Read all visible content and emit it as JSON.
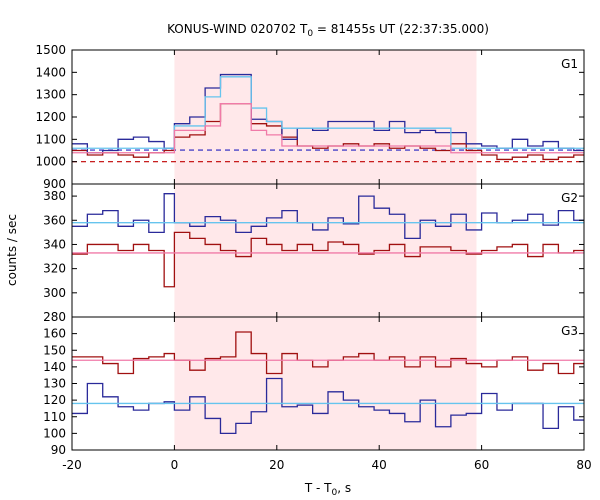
{
  "chart_data": {
    "type": "line",
    "title": {
      "prefix": "KONUS-WIND 020702 T",
      "sub": "0",
      "suffix": " = 81455s UT (22:37:35.000)"
    },
    "xlabel": {
      "prefix": "T - T",
      "sub": "0",
      "suffix": ", s"
    },
    "ylabel": "counts / sec",
    "xlim": [
      -20,
      80
    ],
    "x_ticks": [
      -20,
      0,
      20,
      40,
      60,
      80
    ],
    "x_tick_labels": [
      "-20",
      "0",
      "20",
      "40",
      "60",
      "80"
    ],
    "highlight_interval": [
      0,
      59
    ],
    "highlight_color": "#ffe8ea",
    "colors": {
      "red_series": "#a01010",
      "blue_series": "#2a2a9a",
      "light_blue": "#66c4ee",
      "pink": "#f07aa8",
      "red_dashed": "#c00000",
      "blue_dashed": "#2020c0"
    },
    "panels": [
      {
        "label": "G1",
        "ylim": [
          900,
          1500
        ],
        "y_ticks": [
          900,
          1000,
          1100,
          1200,
          1300,
          1400,
          1500
        ],
        "y_tick_labels": [
          "900",
          "1000",
          "1100",
          "1200",
          "1300",
          "1400",
          "1500"
        ],
        "series": [
          {
            "color_key": "red_series",
            "x": [
              -20,
              -17,
              -14,
              -11,
              -8,
              -5,
              -2,
              0,
              3,
              6,
              9,
              12,
              15,
              18,
              21,
              24,
              27,
              30,
              33,
              36,
              39,
              42,
              45,
              48,
              51,
              54,
              57,
              60,
              63,
              66,
              69,
              72,
              75,
              78,
              80
            ],
            "values": [
              1050,
              1030,
              1040,
              1030,
              1020,
              1040,
              1050,
              1110,
              1120,
              1180,
              1260,
              1260,
              1170,
              1160,
              1110,
              1070,
              1060,
              1070,
              1080,
              1070,
              1080,
              1060,
              1070,
              1060,
              1050,
              1080,
              1050,
              1030,
              1010,
              1020,
              1030,
              1010,
              1020,
              1030,
              1030
            ]
          },
          {
            "color_key": "blue_series",
            "x": [
              -20,
              -17,
              -14,
              -11,
              -8,
              -5,
              -2,
              0,
              3,
              6,
              9,
              12,
              15,
              18,
              21,
              24,
              27,
              30,
              33,
              36,
              39,
              42,
              45,
              48,
              51,
              54,
              57,
              60,
              63,
              66,
              69,
              72,
              75,
              78,
              80
            ],
            "values": [
              1080,
              1040,
              1050,
              1100,
              1110,
              1090,
              1060,
              1170,
              1200,
              1330,
              1390,
              1390,
              1190,
              1180,
              1100,
              1150,
              1140,
              1180,
              1180,
              1180,
              1140,
              1180,
              1130,
              1140,
              1130,
              1130,
              1080,
              1070,
              1060,
              1100,
              1070,
              1090,
              1060,
              1050,
              1050
            ]
          },
          {
            "color_key": "light_blue",
            "x": [
              -20,
              0,
              6,
              9,
              12,
              15,
              18,
              21,
              54,
              80
            ],
            "values": [
              1060,
              1160,
              1290,
              1380,
              1380,
              1240,
              1180,
              1150,
              1060,
              1060
            ]
          },
          {
            "color_key": "pink",
            "x": [
              -20,
              0,
              6,
              9,
              12,
              15,
              18,
              21,
              54,
              80
            ],
            "values": [
              1040,
              1140,
              1160,
              1260,
              1260,
              1140,
              1120,
              1070,
              1040,
              1040
            ]
          }
        ],
        "dashed": [
          {
            "color_key": "blue_dashed",
            "value": 1052
          },
          {
            "color_key": "red_dashed",
            "value": 1000
          }
        ]
      },
      {
        "label": "G2",
        "ylim": [
          280,
          390
        ],
        "y_ticks": [
          280,
          300,
          320,
          340,
          360,
          380
        ],
        "y_tick_labels": [
          "280",
          "300",
          "320",
          "340",
          "360",
          "380"
        ],
        "series": [
          {
            "color_key": "blue_series",
            "x": [
              -20,
              -17,
              -14,
              -11,
              -8,
              -5,
              -2,
              0,
              3,
              6,
              9,
              12,
              15,
              18,
              21,
              24,
              27,
              30,
              33,
              36,
              39,
              42,
              45,
              48,
              51,
              54,
              57,
              60,
              63,
              66,
              69,
              72,
              75,
              78,
              80
            ],
            "values": [
              355,
              365,
              368,
              355,
              360,
              350,
              382,
              358,
              355,
              363,
              360,
              350,
              355,
              362,
              368,
              358,
              352,
              362,
              357,
              380,
              370,
              365,
              345,
              360,
              355,
              365,
              352,
              366,
              358,
              360,
              365,
              356,
              368,
              360,
              360
            ]
          },
          {
            "color_key": "red_series",
            "x": [
              -20,
              -17,
              -14,
              -11,
              -8,
              -5,
              -2,
              0,
              3,
              6,
              9,
              12,
              15,
              18,
              21,
              24,
              27,
              30,
              33,
              36,
              39,
              42,
              45,
              48,
              51,
              54,
              57,
              60,
              63,
              66,
              69,
              72,
              75,
              78,
              80
            ],
            "values": [
              332,
              340,
              340,
              335,
              340,
              335,
              305,
              350,
              345,
              340,
              335,
              330,
              345,
              340,
              335,
              340,
              335,
              342,
              340,
              332,
              335,
              340,
              330,
              338,
              338,
              335,
              332,
              335,
              338,
              340,
              330,
              340,
              333,
              335,
              335
            ]
          },
          {
            "color_key": "light_blue",
            "x": [
              -20,
              80
            ],
            "values": [
              358,
              358
            ]
          },
          {
            "color_key": "pink",
            "x": [
              -20,
              80
            ],
            "values": [
              333,
              333
            ]
          }
        ],
        "dashed": []
      },
      {
        "label": "G3",
        "ylim": [
          90,
          170
        ],
        "y_ticks": [
          90,
          100,
          110,
          120,
          130,
          140,
          150,
          160
        ],
        "y_tick_labels": [
          "90",
          "100",
          "110",
          "120",
          "130",
          "140",
          "150",
          "160"
        ],
        "series": [
          {
            "color_key": "red_series",
            "x": [
              -20,
              -17,
              -14,
              -11,
              -8,
              -5,
              -2,
              0,
              3,
              6,
              9,
              12,
              15,
              18,
              21,
              24,
              27,
              30,
              33,
              36,
              39,
              42,
              45,
              48,
              51,
              54,
              57,
              60,
              63,
              66,
              69,
              72,
              75,
              78,
              80
            ],
            "values": [
              146,
              146,
              142,
              136,
              145,
              146,
              148,
              144,
              138,
              145,
              146,
              161,
              148,
              136,
              148,
              144,
              140,
              144,
              146,
              148,
              144,
              146,
              140,
              146,
              140,
              145,
              142,
              140,
              144,
              146,
              138,
              142,
              136,
              142,
              142
            ]
          },
          {
            "color_key": "blue_series",
            "x": [
              -20,
              -17,
              -14,
              -11,
              -8,
              -5,
              -2,
              0,
              3,
              6,
              9,
              12,
              15,
              18,
              21,
              24,
              27,
              30,
              33,
              36,
              39,
              42,
              45,
              48,
              51,
              54,
              57,
              60,
              63,
              66,
              69,
              72,
              75,
              78,
              80
            ],
            "values": [
              112,
              130,
              122,
              116,
              114,
              118,
              119,
              114,
              122,
              109,
              100,
              106,
              113,
              133,
              116,
              117,
              112,
              125,
              120,
              116,
              114,
              112,
              107,
              120,
              104,
              111,
              112,
              124,
              114,
              118,
              118,
              103,
              116,
              108,
              108
            ]
          },
          {
            "color_key": "light_blue",
            "x": [
              -20,
              80
            ],
            "values": [
              118,
              118
            ]
          },
          {
            "color_key": "pink",
            "x": [
              -20,
              80
            ],
            "values": [
              144,
              144
            ]
          }
        ],
        "dashed": []
      }
    ]
  }
}
